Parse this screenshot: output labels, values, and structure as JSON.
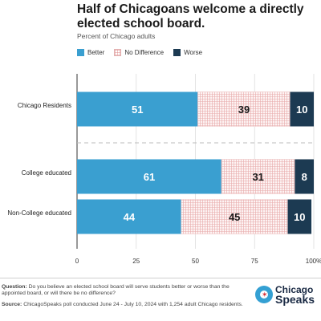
{
  "header": {
    "title": "Half of Chicagoans welcome a directly elected school board.",
    "subtitle": "Percent of Chicago adults"
  },
  "legend": [
    {
      "label": "Better",
      "color": "#3a9fd0"
    },
    {
      "label": "No Difference",
      "color": "#fbeaea"
    },
    {
      "label": "Worse",
      "color": "#1c3a52"
    }
  ],
  "chart_data": {
    "type": "bar",
    "orientation": "horizontal",
    "stacked": true,
    "categories": [
      "Chicago Residents",
      "College educated",
      "Non-College educated"
    ],
    "series": [
      {
        "name": "Better",
        "values": [
          51,
          61,
          44
        ],
        "color": "#3a9fd0"
      },
      {
        "name": "No Difference",
        "values": [
          39,
          31,
          45
        ],
        "color": "#fbeaea"
      },
      {
        "name": "Worse",
        "values": [
          10,
          8,
          10
        ],
        "color": "#1c3a52"
      }
    ],
    "xlim": [
      0,
      100
    ],
    "xticks": [
      "0",
      "25",
      "50",
      "75",
      "100%"
    ],
    "legend_position": "top-left"
  },
  "footer": {
    "question_label": "Question:",
    "question_text": "Do you believe an elected school board will serve students better or worse than the appointed board, or will there be no difference?",
    "source_label": "Source:",
    "source_text": "ChicagoSpeaks poll conducted June 24 - July 10, 2024 with 1,254 adult Chicago residents."
  },
  "logo": {
    "line1": "Chicago",
    "line2": "Speaks",
    "icon": "chicago-star-icon"
  }
}
